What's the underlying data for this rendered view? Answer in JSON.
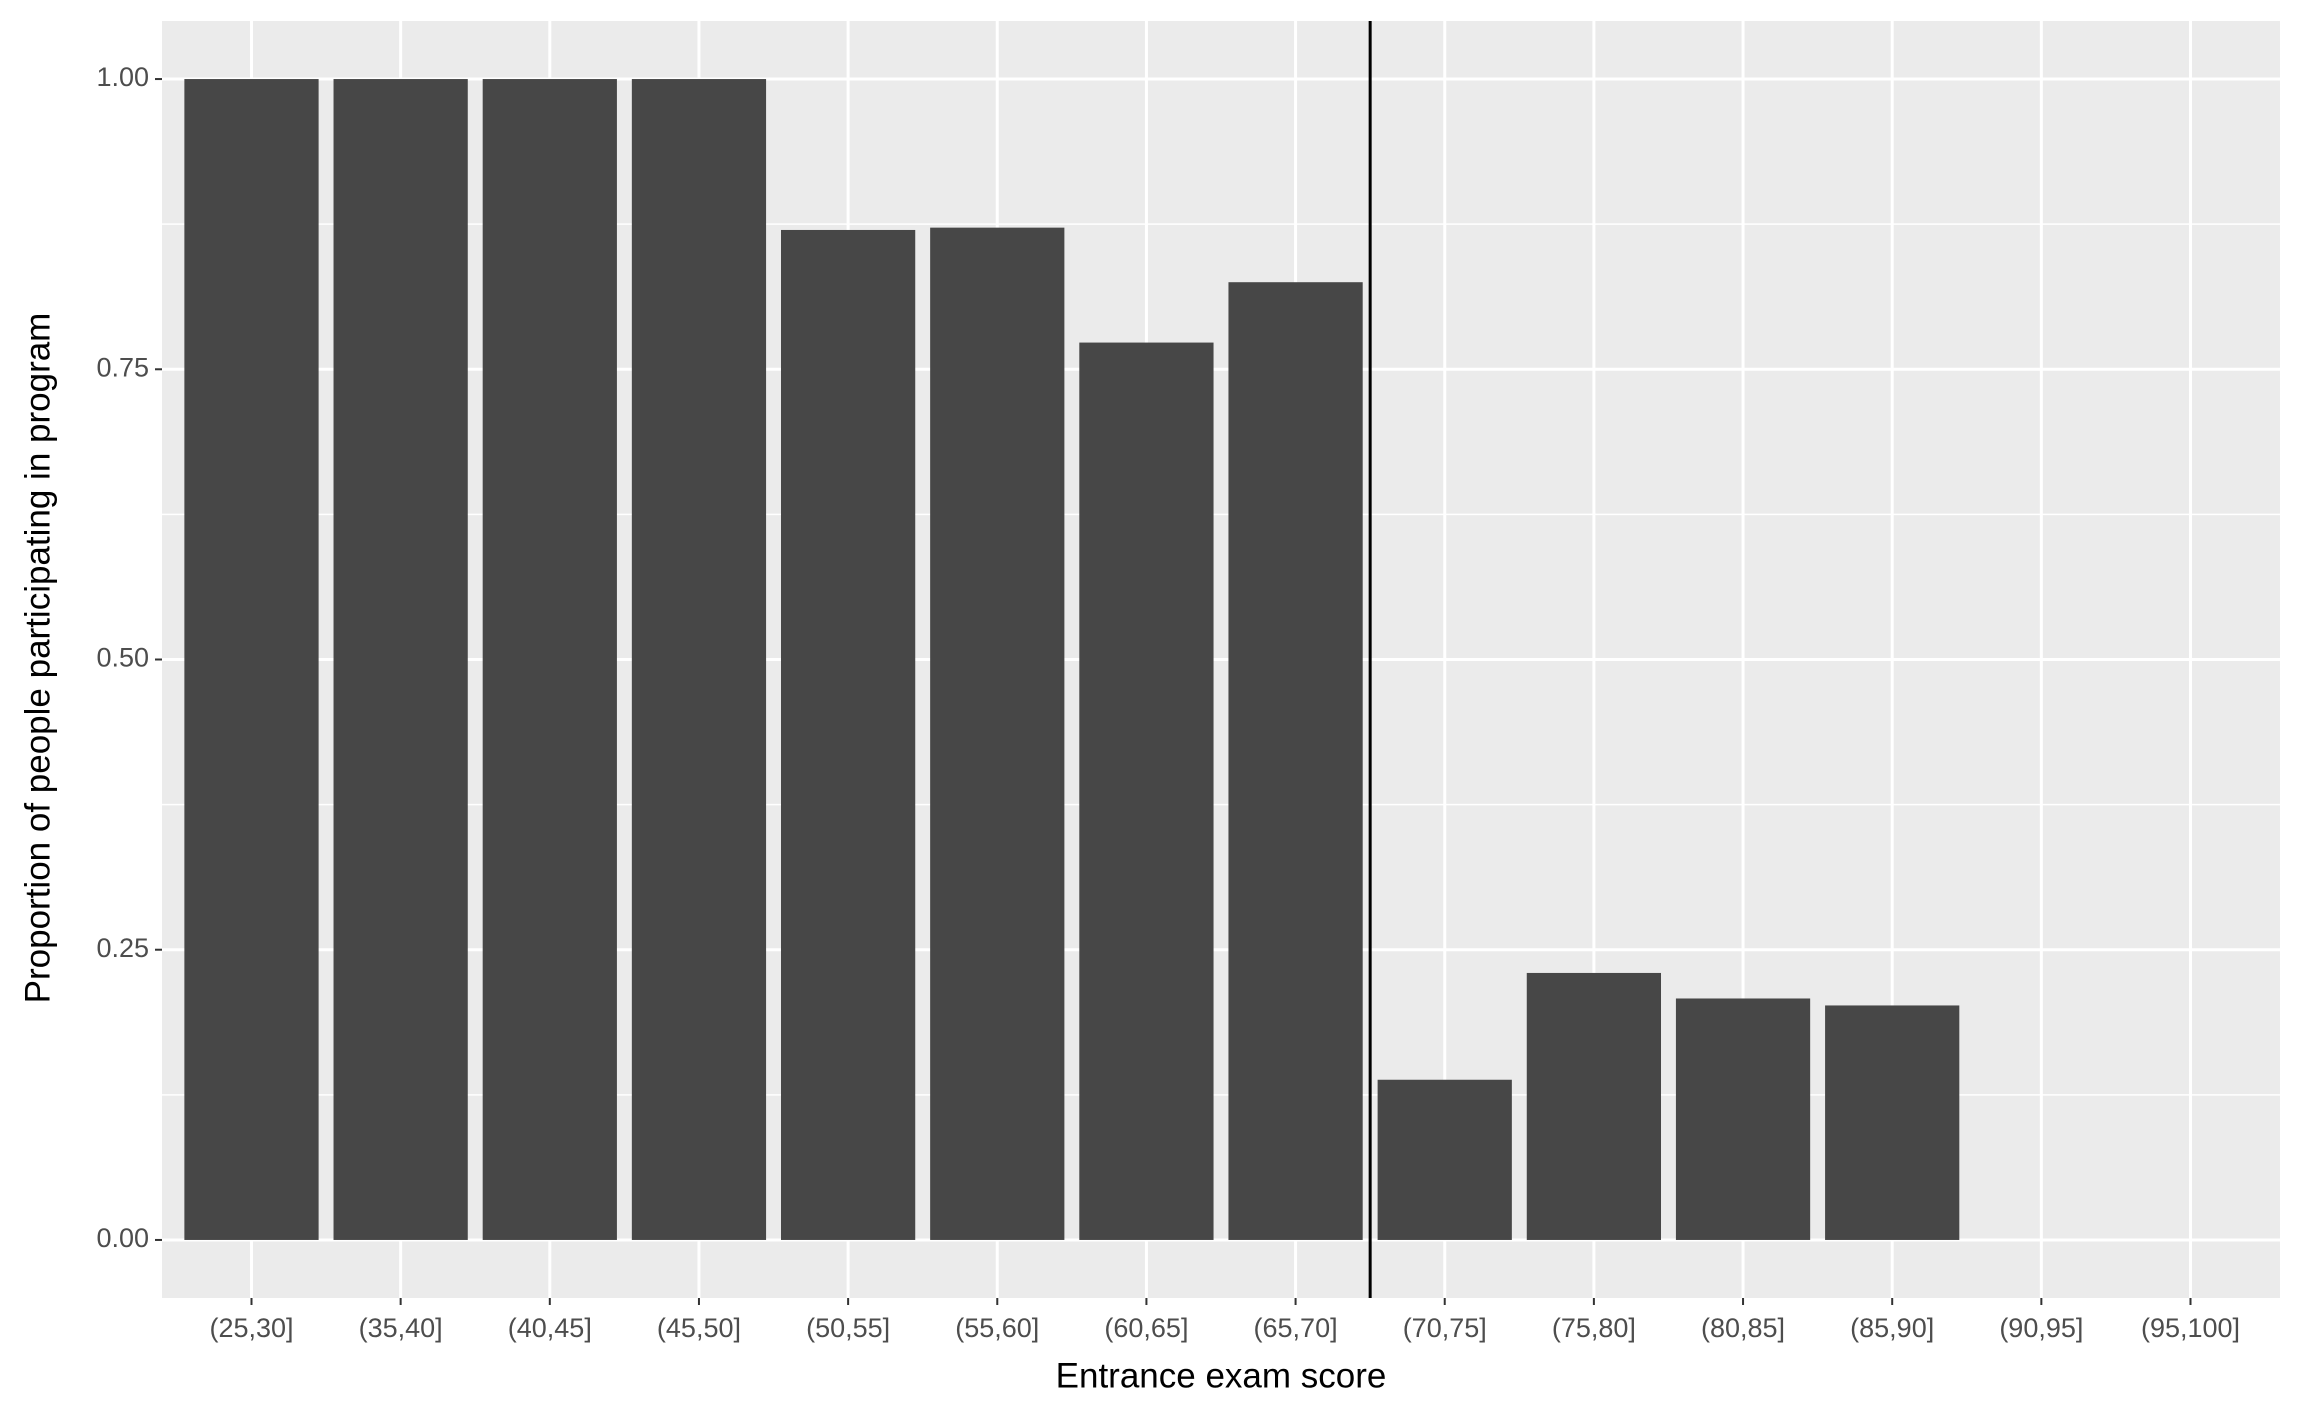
{
  "chart_data": {
    "type": "bar",
    "x_label": "Entrance exam score",
    "y_label": "Proportion of people participating in program",
    "categories": [
      "(25,30]",
      "(35,40]",
      "(40,45]",
      "(45,50]",
      "(50,55]",
      "(55,60]",
      "(60,65]",
      "(65,70]",
      "(70,75]",
      "(75,80]",
      "(80,85]",
      "(85,90]",
      "(90,95]",
      "(95,100]"
    ],
    "values": [
      1,
      1,
      1,
      1,
      0.87,
      0.872,
      0.773,
      0.825,
      0.138,
      0.23,
      0.208,
      0.202,
      0,
      0
    ],
    "color": "#474747",
    "ylim": [
      -0.05,
      1.05
    ],
    "yticks": [
      {
        "value": 0,
        "label": "0.00"
      },
      {
        "value": 0.25,
        "label": "0.25"
      },
      {
        "value": 0.5,
        "label": "0.50"
      },
      {
        "value": 0.75,
        "label": "0.75"
      },
      {
        "value": 1,
        "label": "1.00"
      }
    ],
    "grid": true,
    "vline_between": [
      "(65,70]",
      "(70,75]"
    ]
  }
}
